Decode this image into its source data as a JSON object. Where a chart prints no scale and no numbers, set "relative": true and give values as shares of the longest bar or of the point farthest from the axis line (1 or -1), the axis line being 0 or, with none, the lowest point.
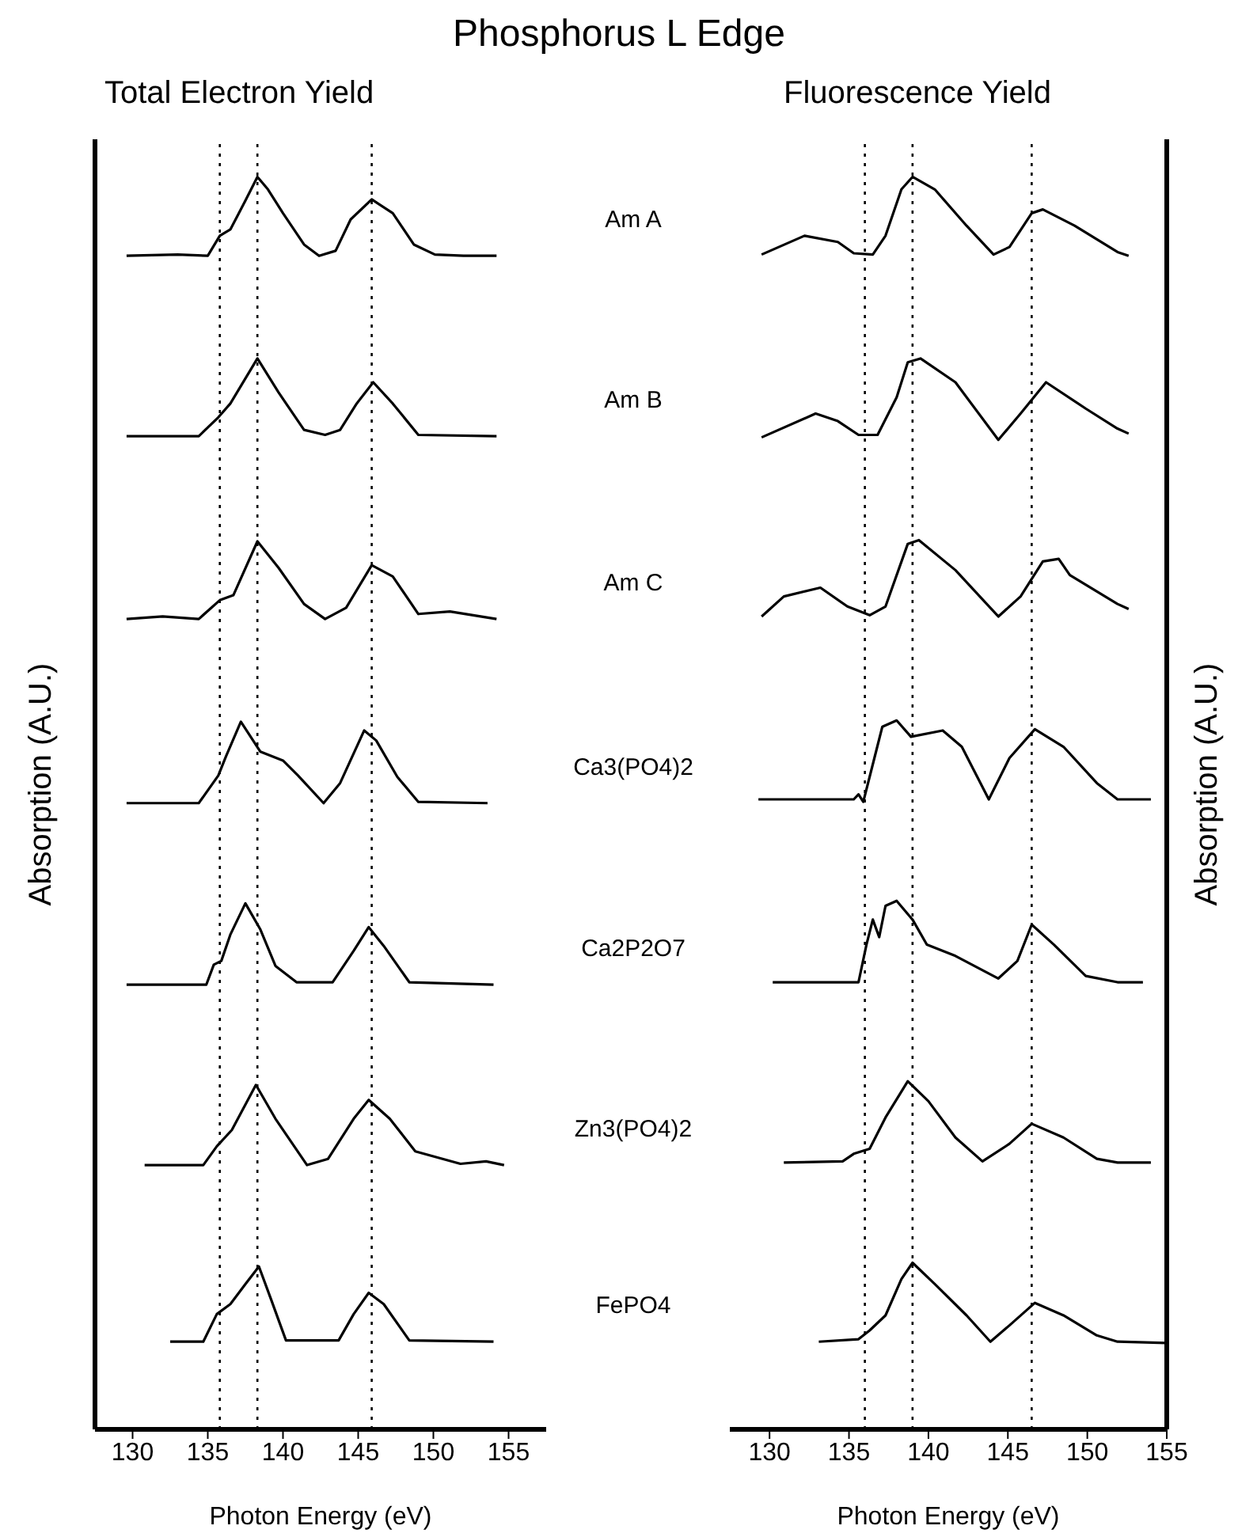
{
  "chart_data": [
    {
      "type": "line",
      "title": "Phosphorus L Edge",
      "subtitle": "Total Electron Yield",
      "xlabel": "Photon Energy (eV)",
      "ylabel": "Absorption (A.U.)",
      "relative": true,
      "xlim": [
        127.5,
        157.5
      ],
      "xticks": [
        130,
        135,
        140,
        145,
        150,
        155
      ],
      "marker": "none",
      "line_style": "solid",
      "ref_lines": [
        {
          "axis": "x",
          "value": 135.8,
          "color": "#000000",
          "line_style": "dotted"
        },
        {
          "axis": "x",
          "value": 138.3,
          "color": "#000000",
          "line_style": "dotted"
        },
        {
          "axis": "x",
          "value": 145.9,
          "color": "#000000",
          "line_style": "dotted"
        }
      ],
      "series": [
        {
          "name": "Am A",
          "color": "#000000",
          "x": [
            129.6,
            133,
            135,
            135.8,
            136.5,
            137.5,
            138.3,
            139,
            140,
            141.4,
            142.4,
            143.5,
            144.5,
            145.9,
            147.3,
            148.7,
            150.1,
            152,
            154.2
          ],
          "values": [
            0.937,
            0.938,
            0.937,
            0.953,
            0.958,
            0.981,
            1.0,
            0.99,
            0.971,
            0.946,
            0.937,
            0.941,
            0.966,
            0.982,
            0.971,
            0.946,
            0.938,
            0.937,
            0.937
          ]
        },
        {
          "name": "Am B",
          "color": "#000000",
          "x": [
            129.6,
            134.4,
            135.7,
            136.5,
            138.3,
            139.7,
            141.4,
            142.8,
            143.8,
            144.9,
            146.0,
            147.3,
            149.0,
            154.2
          ],
          "values": [
            0.793,
            0.793,
            0.808,
            0.819,
            0.855,
            0.828,
            0.798,
            0.794,
            0.798,
            0.819,
            0.836,
            0.819,
            0.794,
            0.793
          ]
        },
        {
          "name": "Am C",
          "color": "#000000",
          "x": [
            129.6,
            132.0,
            134.4,
            135.8,
            136.7,
            138.3,
            139.7,
            141.4,
            142.8,
            144.2,
            145.9,
            147.3,
            149.0,
            151.1,
            154.2
          ],
          "values": [
            0.647,
            0.649,
            0.647,
            0.662,
            0.666,
            0.709,
            0.688,
            0.659,
            0.647,
            0.656,
            0.69,
            0.681,
            0.651,
            0.653,
            0.647
          ]
        },
        {
          "name": "Ca3(PO4)2",
          "color": "#000000",
          "x": [
            129.6,
            134.4,
            135.7,
            136.2,
            137.2,
            138.5,
            140.0,
            141.0,
            142.7,
            143.8,
            145.4,
            146.2,
            147.6,
            149.0,
            153.6
          ],
          "values": [
            0.5,
            0.5,
            0.522,
            0.537,
            0.565,
            0.541,
            0.534,
            0.522,
            0.5,
            0.516,
            0.558,
            0.55,
            0.521,
            0.501,
            0.5
          ]
        },
        {
          "name": "Ca2P2O7",
          "color": "#000000",
          "x": [
            129.6,
            134.9,
            135.4,
            135.9,
            136.5,
            137.5,
            138.5,
            139.5,
            140.9,
            143.3,
            144.7,
            145.7,
            146.7,
            148.4,
            154.0
          ],
          "values": [
            0.355,
            0.355,
            0.371,
            0.374,
            0.395,
            0.42,
            0.399,
            0.37,
            0.357,
            0.357,
            0.382,
            0.401,
            0.386,
            0.357,
            0.355
          ]
        },
        {
          "name": "Zn3(PO4)2",
          "color": "#000000",
          "x": [
            130.8,
            134.7,
            135.6,
            136.6,
            138.2,
            139.5,
            141.6,
            143.0,
            144.7,
            145.7,
            147.1,
            148.8,
            151.8,
            153.5,
            154.7
          ],
          "values": [
            0.211,
            0.211,
            0.226,
            0.239,
            0.275,
            0.248,
            0.211,
            0.216,
            0.248,
            0.263,
            0.248,
            0.222,
            0.212,
            0.214,
            0.211
          ]
        },
        {
          "name": "FePO4",
          "color": "#000000",
          "x": [
            132.5,
            134.7,
            135.6,
            136.5,
            137.5,
            138.4,
            139.2,
            140.2,
            143.7,
            144.7,
            145.7,
            146.7,
            148.4,
            154.0
          ],
          "values": [
            0.07,
            0.07,
            0.092,
            0.1,
            0.116,
            0.13,
            0.104,
            0.071,
            0.071,
            0.092,
            0.109,
            0.1,
            0.071,
            0.07
          ]
        }
      ]
    },
    {
      "type": "line",
      "title": "Fluorescence Yield",
      "xlabel": "Photon Energy (eV)",
      "y2label": "Absorption (A.U.)",
      "relative": true,
      "xlim": [
        127.5,
        155
      ],
      "xticks": [
        130,
        135,
        140,
        145,
        150,
        155
      ],
      "marker": "none",
      "line_style": "solid",
      "ref_lines": [
        {
          "axis": "x",
          "value": 136.0,
          "color": "#000000",
          "line_style": "dotted"
        },
        {
          "axis": "x",
          "value": 139.0,
          "color": "#000000",
          "line_style": "dotted"
        },
        {
          "axis": "x",
          "value": 146.5,
          "color": "#000000",
          "line_style": "dotted"
        }
      ],
      "series": [
        {
          "color": "#000000",
          "x": [
            129.5,
            132.2,
            134.3,
            135.3,
            136.5,
            137.3,
            138.3,
            139.0,
            140.4,
            142.4,
            144.1,
            145.1,
            146.5,
            147.2,
            149.2,
            151.9,
            152.6
          ],
          "values": [
            0.938,
            0.953,
            0.948,
            0.939,
            0.938,
            0.953,
            0.99,
            1.0,
            0.99,
            0.961,
            0.938,
            0.944,
            0.971,
            0.974,
            0.961,
            0.94,
            0.937
          ]
        },
        {
          "color": "#000000",
          "x": [
            129.5,
            132.9,
            134.3,
            135.6,
            136.8,
            138.0,
            138.7,
            139.5,
            141.7,
            144.4,
            145.8,
            147.4,
            149.9,
            151.9,
            152.6
          ],
          "values": [
            0.792,
            0.811,
            0.805,
            0.794,
            0.794,
            0.824,
            0.852,
            0.855,
            0.836,
            0.79,
            0.811,
            0.836,
            0.815,
            0.799,
            0.795
          ]
        },
        {
          "color": "#000000",
          "x": [
            129.5,
            130.9,
            133.2,
            134.9,
            136.3,
            137.3,
            138.7,
            139.4,
            141.7,
            144.4,
            145.8,
            147.2,
            148.2,
            148.9,
            151.9,
            152.6
          ],
          "values": [
            0.649,
            0.665,
            0.672,
            0.657,
            0.65,
            0.657,
            0.707,
            0.71,
            0.686,
            0.649,
            0.665,
            0.693,
            0.695,
            0.682,
            0.659,
            0.655
          ]
        },
        {
          "color": "#000000",
          "x": [
            129.3,
            135.3,
            135.6,
            135.9,
            136.6,
            137.1,
            138.0,
            138.9,
            140.9,
            142.1,
            143.8,
            145.1,
            146.7,
            148.5,
            150.6,
            151.9,
            154.0
          ],
          "values": [
            0.503,
            0.503,
            0.507,
            0.501,
            0.536,
            0.561,
            0.566,
            0.553,
            0.558,
            0.545,
            0.503,
            0.536,
            0.559,
            0.545,
            0.516,
            0.503,
            0.503
          ]
        },
        {
          "color": "#000000",
          "x": [
            130.2,
            135.6,
            136.1,
            136.5,
            136.9,
            137.3,
            138.0,
            139.0,
            139.9,
            141.7,
            144.4,
            145.6,
            146.5,
            147.9,
            149.9,
            151.9,
            153.5
          ],
          "values": [
            0.357,
            0.357,
            0.387,
            0.407,
            0.393,
            0.418,
            0.422,
            0.407,
            0.387,
            0.378,
            0.36,
            0.374,
            0.403,
            0.387,
            0.362,
            0.357,
            0.357
          ]
        },
        {
          "color": "#000000",
          "x": [
            130.9,
            134.6,
            135.3,
            136.3,
            137.3,
            138.7,
            140.0,
            141.7,
            143.4,
            145.1,
            146.5,
            148.5,
            150.6,
            151.9,
            154.0
          ],
          "values": [
            0.213,
            0.214,
            0.22,
            0.224,
            0.249,
            0.278,
            0.262,
            0.233,
            0.214,
            0.228,
            0.244,
            0.233,
            0.216,
            0.213,
            0.213
          ]
        },
        {
          "color": "#000000",
          "x": [
            133.1,
            135.6,
            136.3,
            137.3,
            138.3,
            139.0,
            140.4,
            142.4,
            143.9,
            145.1,
            146.7,
            148.5,
            150.6,
            151.9,
            155.0
          ],
          "values": [
            0.07,
            0.072,
            0.079,
            0.091,
            0.12,
            0.133,
            0.116,
            0.091,
            0.07,
            0.083,
            0.101,
            0.091,
            0.075,
            0.07,
            0.069
          ]
        }
      ]
    }
  ]
}
